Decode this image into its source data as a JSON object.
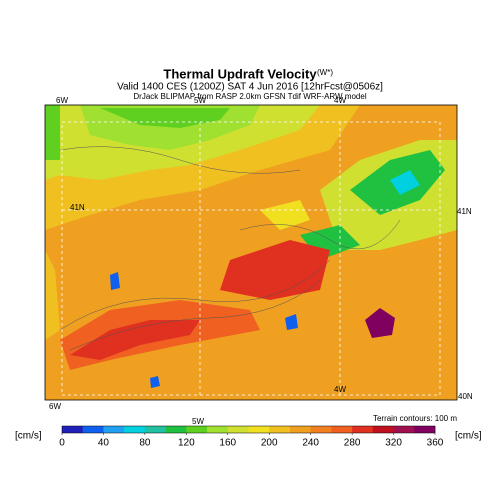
{
  "header": {
    "title": "Thermal Updraft Velocity",
    "title_sup": "(W*)",
    "subtitle": "Valid 1400 CES (1200Z) SAT 4 Jun 2016 [12hrFcst@0506z]",
    "source": "DrJack BLIPMAP from RASP 2.0km GFSN Tdif WRF-ARW model"
  },
  "map": {
    "top_labels": [
      "6W",
      "5W",
      "4W"
    ],
    "bottom_labels": [
      "6W",
      "5W",
      "4W"
    ],
    "left_labels": [
      "41N"
    ],
    "right_labels": [
      "41N",
      "40N"
    ],
    "note": "Terrain contours: 100 m"
  },
  "colorbar": {
    "unit_left": "[cm/s]",
    "unit_right": "[cm/s]",
    "lim": [
      0,
      360
    ],
    "ticks": [
      0,
      40,
      80,
      120,
      160,
      200,
      240,
      280,
      320,
      360
    ],
    "colors": [
      "#2020b8",
      "#1060f0",
      "#20a0f0",
      "#00d0e0",
      "#20c0a0",
      "#20c040",
      "#60d020",
      "#a0e030",
      "#d0e030",
      "#f0e020",
      "#f0c020",
      "#f0a020",
      "#f08020",
      "#f06020",
      "#e03020",
      "#c01020",
      "#a01050",
      "#800060"
    ]
  }
}
